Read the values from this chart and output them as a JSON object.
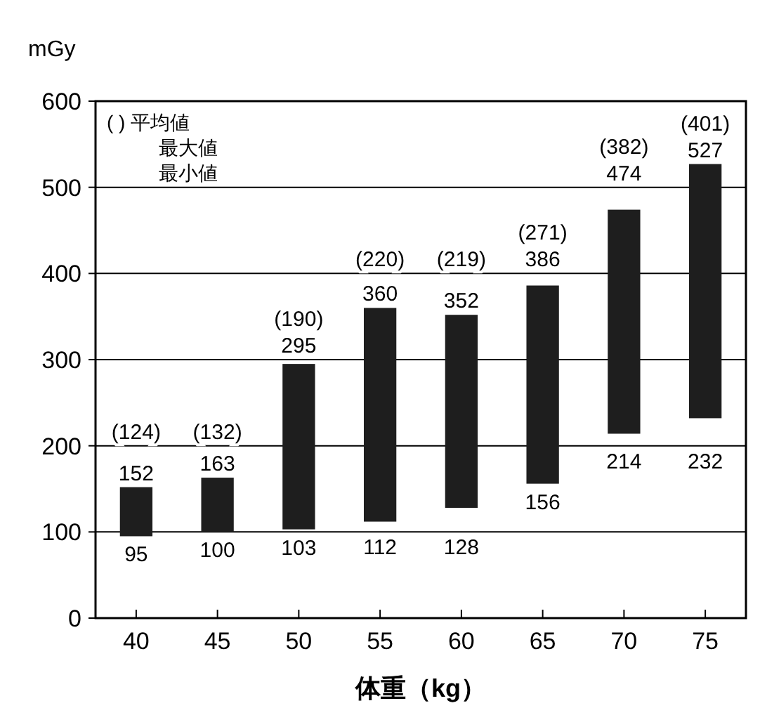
{
  "chart_data": {
    "type": "bar",
    "xlabel": "体重（kg）",
    "ylabel": "mGy",
    "categories": [
      "40",
      "45",
      "50",
      "55",
      "60",
      "65",
      "70",
      "75"
    ],
    "base": [
      95,
      100,
      103,
      112,
      128,
      156,
      214,
      232
    ],
    "values": [
      57,
      63,
      192,
      248,
      224,
      230,
      260,
      295
    ],
    "value_labels": [
      "152",
      "163",
      "295",
      "360",
      "352",
      "386",
      "474",
      "527"
    ],
    "color": "#1e1e1e",
    "ylim": [
      0,
      600
    ],
    "yticks": [
      0,
      100,
      200,
      300,
      400,
      500,
      600
    ],
    "grid": "y",
    "annotations": [
      "(  )  平均値",
      "最大値",
      "最小値",
      "(124)",
      "(132)",
      "(190)",
      "(220)",
      "(219)",
      "(271)",
      "(382)",
      "(401)",
      {
        "text": "95",
        "x": "40",
        "y": 95
      },
      {
        "text": "100",
        "x": "45",
        "y": 100
      },
      {
        "text": "103",
        "x": "50",
        "y": 103
      },
      {
        "text": "112",
        "x": "55",
        "y": 112
      },
      {
        "text": "128",
        "x": "60",
        "y": 128
      },
      {
        "text": "156",
        "x": "65",
        "y": 156
      },
      {
        "text": "214",
        "x": "70",
        "y": 214
      },
      {
        "text": "232",
        "x": "75",
        "y": 232
      }
    ]
  }
}
